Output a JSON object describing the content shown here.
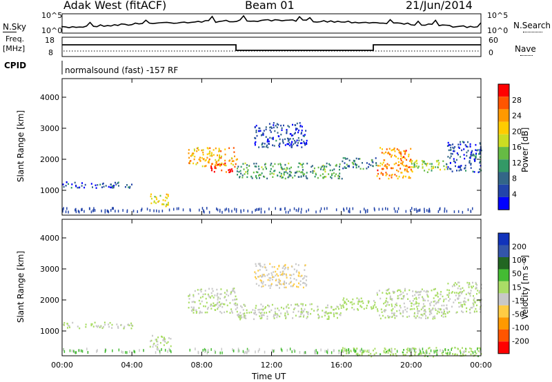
{
  "header": {
    "station": "Adak West (fitACF)",
    "beam": "Beam 01",
    "date": "21/Jun/2014"
  },
  "top_panels": {
    "nsky_label": "N.Sky",
    "nsky_ticks": [
      "10^5",
      "10^0"
    ],
    "nsearch_label": "N.Search",
    "nsearch_ticks": [
      "10^5",
      "10^0"
    ],
    "freq_label_1": "Freq.",
    "freq_label_2": "[MHz]",
    "freq_ticks": [
      "18",
      "8"
    ],
    "nave_label": "Nave",
    "nave_ticks": [
      "60",
      "0"
    ],
    "cpid_label": "CPID",
    "cpid_text": "normalsound (fast) -157 RF"
  },
  "colorbars": {
    "power": {
      "title": "Power [dB]",
      "labels": [
        "28",
        "24",
        "20",
        "16",
        "12",
        "8",
        "4"
      ],
      "colors": [
        "#ff0000",
        "#ff5500",
        "#ff9900",
        "#ffcc00",
        "#ccdd22",
        "#66bb44",
        "#339966",
        "#336688",
        "#2244aa",
        "#0000ff"
      ]
    },
    "velocity": {
      "title": "Velocity [m s⁻¹]",
      "labels": [
        "200",
        "100",
        "50",
        "15",
        "-15",
        "-50",
        "-100",
        "-200"
      ],
      "colors": [
        "#1133bb",
        "#3355aa",
        "#226622",
        "#44bb33",
        "#aadd66",
        "#c8c8c8",
        "#ffcc44",
        "#ff9900",
        "#ff5500",
        "#ff0000"
      ]
    }
  },
  "chart_data": [
    {
      "type": "heatmap",
      "name_in_image": "Power [dB]",
      "xlabel": "Time UT",
      "ylabel": "Slant Range [km]",
      "x_ticks": [
        "00:00",
        "04:00",
        "08:00",
        "12:00",
        "16:00",
        "20:00",
        "00:00"
      ],
      "y_ticks": [
        1000,
        2000,
        3000,
        4000
      ],
      "xlim": [
        0,
        24
      ],
      "ylim": [
        200,
        4600
      ],
      "colorbar_range": [
        0,
        32
      ],
      "features": [
        {
          "x": [
            0,
            4
          ],
          "y": [
            1100,
            1300
          ],
          "value": 6
        },
        {
          "x": [
            5,
            6.2
          ],
          "y": [
            500,
            900
          ],
          "value": 18
        },
        {
          "x": [
            7.2,
            10
          ],
          "y": [
            1800,
            2400
          ],
          "value": 22
        },
        {
          "x": [
            8.5,
            10
          ],
          "y": [
            1600,
            1900
          ],
          "value": 30
        },
        {
          "x": [
            10,
            16
          ],
          "y": [
            1400,
            1900
          ],
          "value": 12
        },
        {
          "x": [
            11,
            14
          ],
          "y": [
            2400,
            3200
          ],
          "value": 5
        },
        {
          "x": [
            16,
            18
          ],
          "y": [
            1700,
            2100
          ],
          "value": 10
        },
        {
          "x": [
            18,
            20
          ],
          "y": [
            1400,
            2400
          ],
          "value": 24
        },
        {
          "x": [
            20,
            22
          ],
          "y": [
            1600,
            2000
          ],
          "value": 16
        },
        {
          "x": [
            22,
            24
          ],
          "y": [
            1600,
            2600
          ],
          "value": 6
        }
      ]
    },
    {
      "type": "heatmap",
      "name_in_image": "Velocity [m s-1]",
      "xlabel": "Time UT",
      "ylabel": "Slant Range [km]",
      "x_ticks": [
        "00:00",
        "04:00",
        "08:00",
        "12:00",
        "16:00",
        "20:00",
        "00:00"
      ],
      "y_ticks": [
        1000,
        2000,
        3000,
        4000
      ],
      "xlim": [
        0,
        24
      ],
      "ylim": [
        200,
        4600
      ],
      "colorbar_range": [
        -250,
        250
      ],
      "features": [
        {
          "x": [
            0,
            4
          ],
          "y": [
            1100,
            1300
          ],
          "value": 0
        },
        {
          "x": [
            5,
            6.2
          ],
          "y": [
            500,
            900
          ],
          "value": 0
        },
        {
          "x": [
            7.2,
            10
          ],
          "y": [
            1600,
            2400
          ],
          "value": 0
        },
        {
          "x": [
            10,
            16
          ],
          "y": [
            1400,
            1900
          ],
          "value": 0
        },
        {
          "x": [
            11,
            14
          ],
          "y": [
            2400,
            3200
          ],
          "value": -40
        },
        {
          "x": [
            16,
            18
          ],
          "y": [
            1700,
            2100
          ],
          "value": 20
        },
        {
          "x": [
            18,
            22
          ],
          "y": [
            1400,
            2400
          ],
          "value": 0
        },
        {
          "x": [
            22,
            24
          ],
          "y": [
            1600,
            2600
          ],
          "value": 0
        },
        {
          "x": [
            16,
            24
          ],
          "y": [
            200,
            500
          ],
          "value": 30
        }
      ]
    }
  ]
}
